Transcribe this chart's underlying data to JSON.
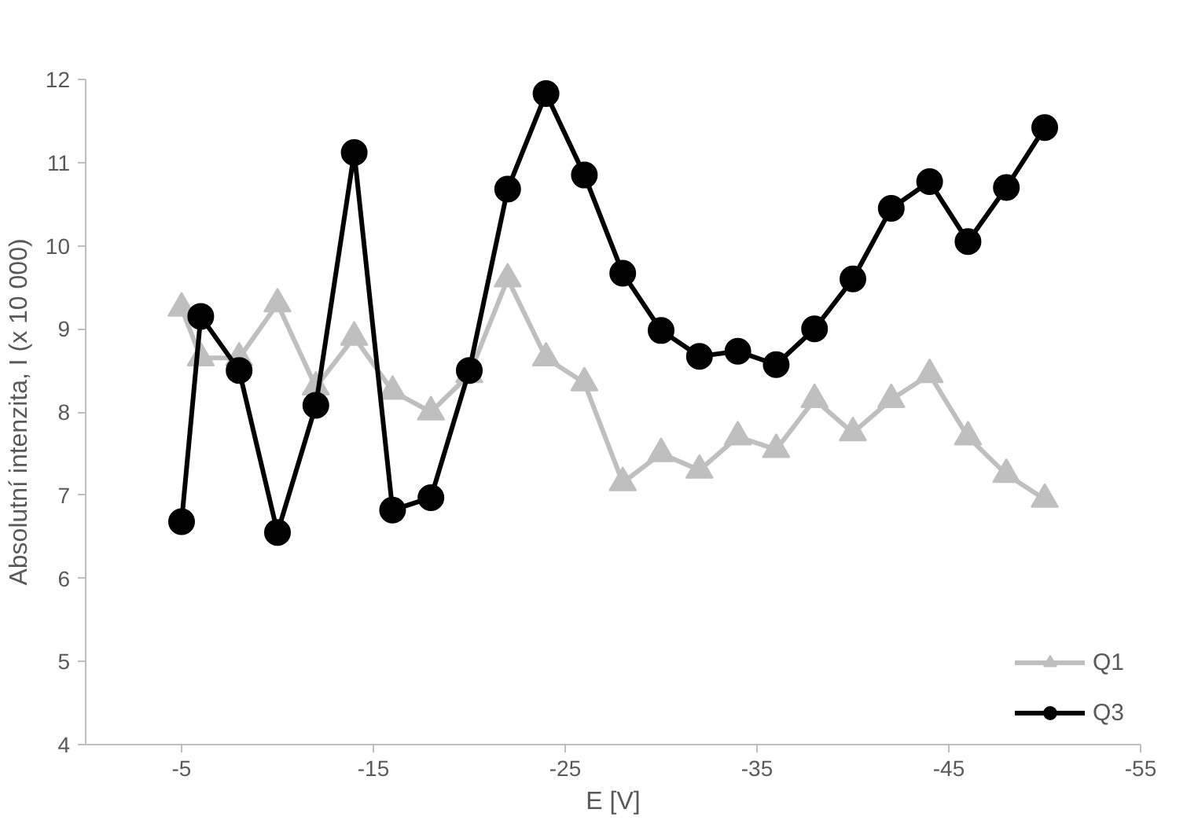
{
  "chart_data": {
    "type": "line",
    "xlabel": "E [V]",
    "ylabel": "Absolutní intenzita, I (x 10 000)",
    "x": [
      -5,
      -6,
      -8,
      -10,
      -12,
      -14,
      -16,
      -18,
      -20,
      -22,
      -24,
      -26,
      -28,
      -30,
      -32,
      -34,
      -36,
      -38,
      -40,
      -42,
      -44,
      -46,
      -48,
      -50
    ],
    "xlim": [
      0,
      -55
    ],
    "xticks": [
      -5,
      -15,
      -25,
      -35,
      -45,
      -55
    ],
    "ylim": [
      4,
      12
    ],
    "yticks": [
      4,
      5,
      6,
      7,
      8,
      9,
      10,
      11,
      12
    ],
    "series": [
      {
        "name": "Q1",
        "color": "#bfbfbf",
        "marker": "triangle",
        "values": [
          9.25,
          8.65,
          8.65,
          9.3,
          8.3,
          8.9,
          8.25,
          8.0,
          8.45,
          9.6,
          8.65,
          8.35,
          7.15,
          7.5,
          7.3,
          7.7,
          7.55,
          8.15,
          7.75,
          8.15,
          8.45,
          7.7,
          7.25,
          6.95
        ]
      },
      {
        "name": "Q3",
        "color": "#000000",
        "marker": "circle",
        "values": [
          6.68,
          9.15,
          8.5,
          6.55,
          8.08,
          11.12,
          6.82,
          6.97,
          8.5,
          10.68,
          11.83,
          10.85,
          9.67,
          8.98,
          8.67,
          8.73,
          8.57,
          9.0,
          9.6,
          10.45,
          10.77,
          10.05,
          10.7,
          11.42
        ]
      }
    ],
    "grid": false,
    "legend": "bottom right",
    "line_style": "solid"
  }
}
